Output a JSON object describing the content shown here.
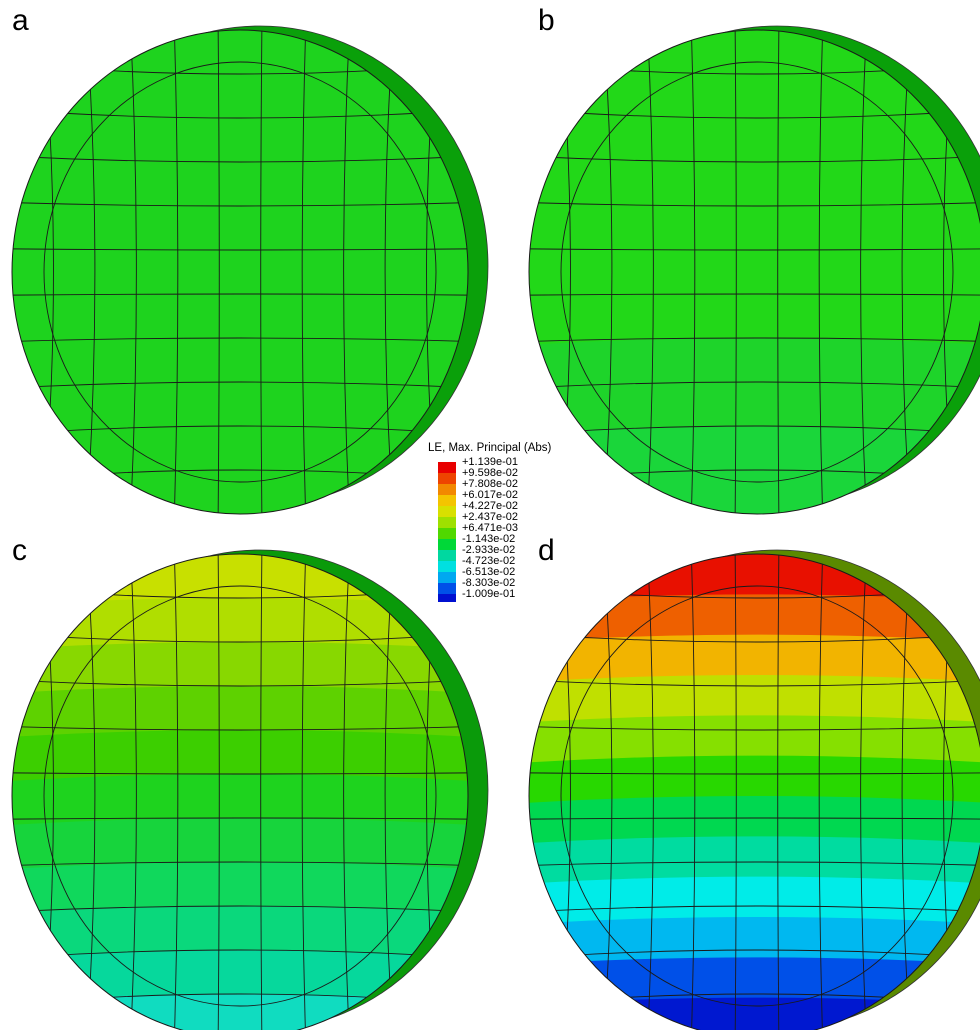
{
  "panels": [
    {
      "label": "a",
      "colors": [
        "#1ed31e",
        "#1ed31e",
        "#1ed31e",
        "#1ed31e",
        "#1ed31e",
        "#1ed31e",
        "#1ed31e",
        "#1ed31e",
        "#1ed31e",
        "#1ed31e",
        "#1ed31e"
      ],
      "side_color": "#0aa00a"
    },
    {
      "label": "b",
      "colors": [
        "#22d818",
        "#22d818",
        "#22d818",
        "#22d818",
        "#22d818",
        "#22d818",
        "#22d818",
        "#1ed42a",
        "#1ed42a",
        "#1ad63a",
        "#1ad63a"
      ],
      "side_color": "#0aa00a"
    },
    {
      "label": "c",
      "colors": [
        "#c8e000",
        "#b0de00",
        "#88d800",
        "#5ed200",
        "#3ccf00",
        "#1ed31e",
        "#17d43c",
        "#10d85c",
        "#0ad87c",
        "#06d89c",
        "#10dcc0"
      ],
      "side_color": "#0a9a0a"
    },
    {
      "label": "d",
      "colors": [
        "#e81000",
        "#ee6000",
        "#f2b400",
        "#c0e000",
        "#86e000",
        "#28d800",
        "#00d850",
        "#00dca0",
        "#00ece8",
        "#00b8f0",
        "#0050e8",
        "#0018d0"
      ],
      "side_color": "#5a8a00"
    }
  ],
  "legend": {
    "title": "LE, Max. Principal (Abs)",
    "entries": [
      {
        "value": "+1.139e-01",
        "color": "#e80000"
      },
      {
        "value": "+9.598e-02",
        "color": "#ee4400"
      },
      {
        "value": "+7.808e-02",
        "color": "#f28800"
      },
      {
        "value": "+6.017e-02",
        "color": "#f4c400"
      },
      {
        "value": "+4.227e-02",
        "color": "#d8e000"
      },
      {
        "value": "+2.437e-02",
        "color": "#9ee000"
      },
      {
        "value": "+6.471e-03",
        "color": "#50d800"
      },
      {
        "value": "-1.143e-02",
        "color": "#00d838"
      },
      {
        "value": "-2.933e-02",
        "color": "#00d8a0"
      },
      {
        "value": "-4.723e-02",
        "color": "#00e0e0"
      },
      {
        "value": "-6.513e-02",
        "color": "#00a8f0"
      },
      {
        "value": "-8.303e-02",
        "color": "#0050e8"
      },
      {
        "value": "-1.009e-01",
        "color": "#0010d0"
      }
    ]
  }
}
